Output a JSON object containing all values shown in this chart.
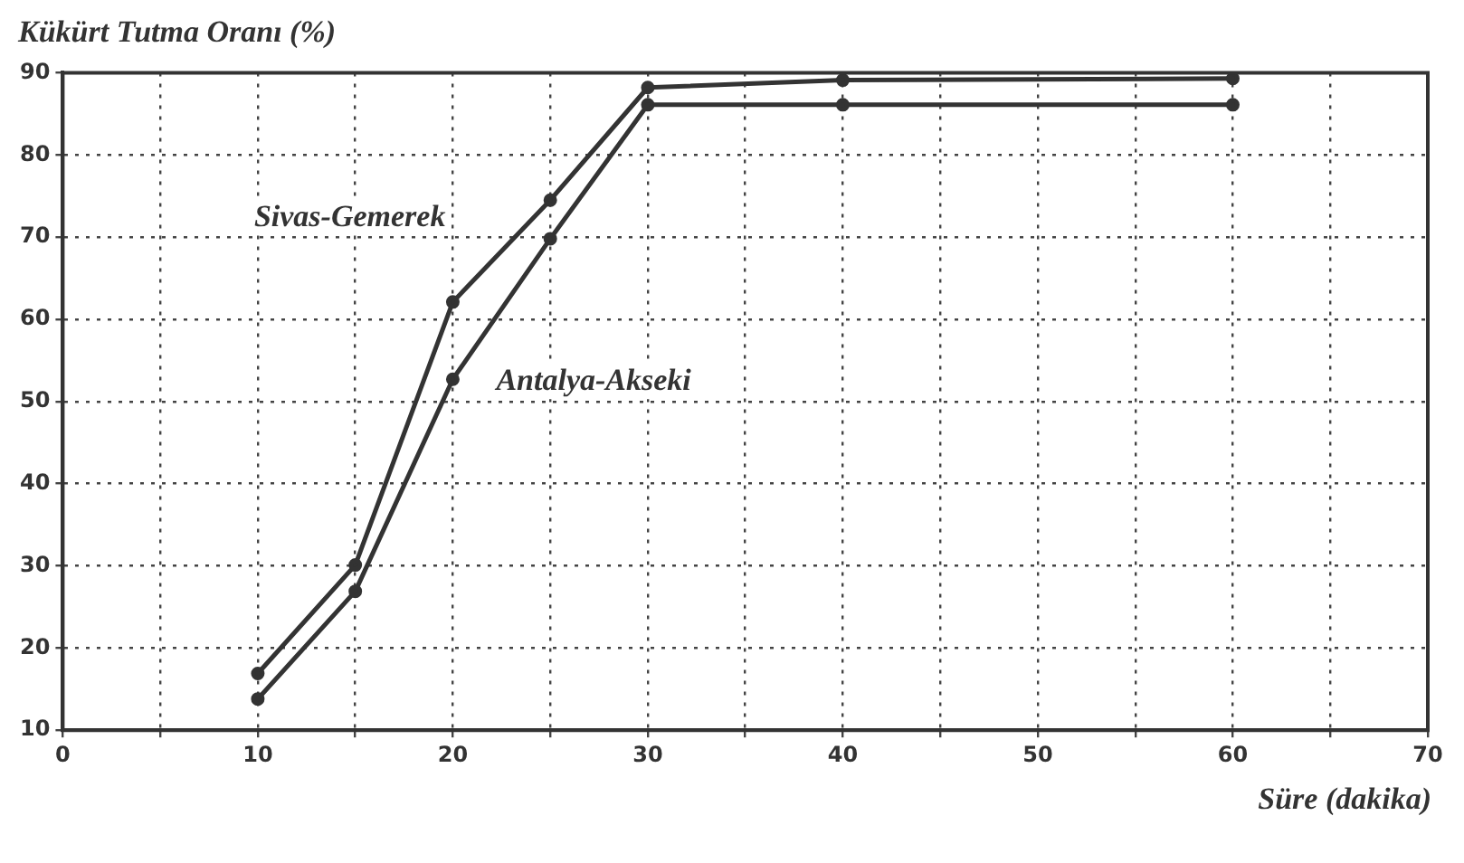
{
  "chart_data": {
    "type": "line",
    "ylabel": "Kükürt Tutma Oranı (%)",
    "xlabel": "Süre (dakika)",
    "x": [
      10,
      15,
      20,
      25,
      30,
      40,
      60
    ],
    "series": [
      {
        "name": "Sivas-Gemerek",
        "color": "#333333",
        "values": [
          16.9,
          30.1,
          62.1,
          74.5,
          88.2,
          89.1,
          89.3
        ]
      },
      {
        "name": "Antalya-Akseki",
        "color": "#333333",
        "values": [
          13.8,
          26.9,
          52.7,
          69.8,
          86.1,
          86.1,
          86.1
        ]
      }
    ],
    "xlim": [
      0,
      70
    ],
    "xticks": [
      0,
      {
        "value": 5,
        "label": null
      },
      10,
      {
        "value": 15,
        "label": null
      },
      20,
      {
        "value": 25,
        "label": null
      },
      30,
      {
        "value": 35,
        "label": null
      },
      40,
      {
        "value": 45,
        "label": null
      },
      50,
      {
        "value": 55,
        "label": null
      },
      60,
      {
        "value": 65,
        "label": null
      },
      70
    ],
    "ylim": [
      10,
      90
    ],
    "yticks": [
      10,
      20,
      30,
      40,
      50,
      60,
      70,
      80,
      90
    ],
    "grid": true,
    "legend": false,
    "marker": "circle",
    "line_style": "solid"
  }
}
